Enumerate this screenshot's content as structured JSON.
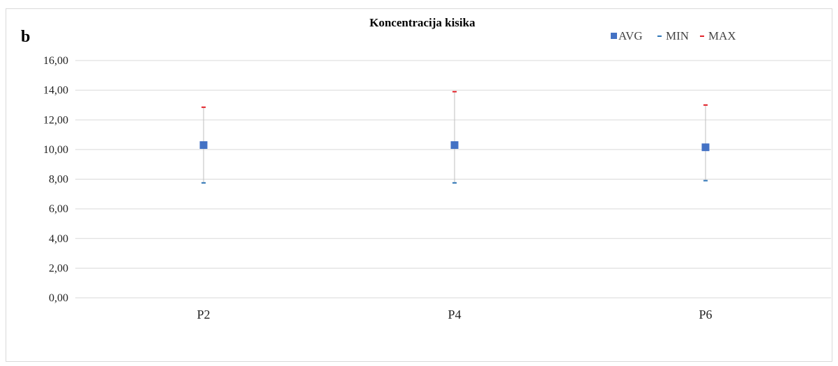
{
  "panel_letter": "b",
  "colors": {
    "avg": "#4472C4",
    "min": "#2E75B6",
    "max": "#E2232A",
    "grid": "#d9d9d9",
    "whisker": "#bfbfbf"
  },
  "chart_data": {
    "type": "scatter",
    "title": "Koncentracija kisika",
    "xlabel": "",
    "ylabel": "",
    "categories": [
      "P2",
      "P4",
      "P6"
    ],
    "ylim": [
      0,
      16
    ],
    "yticks": [
      "0,00",
      "2,00",
      "4,00",
      "6,00",
      "8,00",
      "10,00",
      "12,00",
      "14,00",
      "16,00"
    ],
    "grid": true,
    "legend_position": "top-right",
    "series": [
      {
        "name": "AVG",
        "marker": "square",
        "values": [
          10.3,
          10.3,
          10.15
        ]
      },
      {
        "name": "MIN",
        "marker": "dash",
        "values": [
          7.75,
          7.75,
          7.9
        ]
      },
      {
        "name": "MAX",
        "marker": "dash",
        "values": [
          12.85,
          13.9,
          13.0
        ]
      }
    ]
  }
}
